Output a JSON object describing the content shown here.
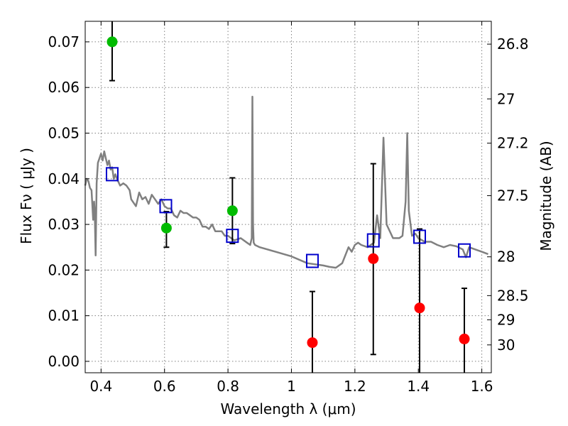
{
  "chart_data": {
    "type": "scatter",
    "xlabel": "Wavelength  λ (μm)",
    "ylabel": "Flux  Fν  ( μJy )",
    "ylabel_right": "Magnitude (AB)",
    "xlim": [
      0.35,
      1.63
    ],
    "ylim": [
      -0.0025,
      0.0745
    ],
    "grid": true,
    "x_ticks": [
      0.4,
      0.6,
      0.8,
      1.0,
      1.2,
      1.4,
      1.6
    ],
    "x_tick_labels": [
      "0.4",
      "0.6",
      "0.8",
      "1",
      "1.2",
      "1.4",
      "1.6"
    ],
    "y_ticks": [
      0.0,
      0.01,
      0.02,
      0.03,
      0.04,
      0.05,
      0.06,
      0.07
    ],
    "y_tick_labels": [
      "0.00",
      "0.01",
      "0.02",
      "0.03",
      "0.04",
      "0.05",
      "0.06",
      "0.07"
    ],
    "right_ticks": [
      {
        "flux": 0.0695,
        "label": "26.8"
      },
      {
        "flux": 0.0575,
        "label": "27"
      },
      {
        "flux": 0.0478,
        "label": "27.2"
      },
      {
        "flux": 0.0363,
        "label": "27.5"
      },
      {
        "flux": 0.0229,
        "label": "28"
      },
      {
        "flux": 0.0144,
        "label": "28.5"
      },
      {
        "flux": 0.0091,
        "label": "29"
      },
      {
        "flux": 0.0036,
        "label": "30"
      }
    ],
    "model_spectrum": {
      "color": "#808080",
      "x": [
        0.35,
        0.355,
        0.36,
        0.365,
        0.37,
        0.372,
        0.375,
        0.378,
        0.38,
        0.383,
        0.386,
        0.39,
        0.395,
        0.4,
        0.405,
        0.41,
        0.415,
        0.42,
        0.425,
        0.43,
        0.435,
        0.44,
        0.445,
        0.45,
        0.46,
        0.47,
        0.48,
        0.485,
        0.49,
        0.495,
        0.5,
        0.51,
        0.52,
        0.53,
        0.54,
        0.55,
        0.56,
        0.57,
        0.58,
        0.59,
        0.6,
        0.61,
        0.62,
        0.63,
        0.64,
        0.65,
        0.66,
        0.67,
        0.68,
        0.69,
        0.7,
        0.71,
        0.72,
        0.73,
        0.74,
        0.75,
        0.76,
        0.77,
        0.78,
        0.79,
        0.8,
        0.82,
        0.84,
        0.86,
        0.87,
        0.875,
        0.877,
        0.879,
        0.881,
        0.885,
        0.9,
        0.95,
        1.0,
        1.05,
        1.1,
        1.12,
        1.14,
        1.16,
        1.18,
        1.19,
        1.2,
        1.21,
        1.22,
        1.24,
        1.26,
        1.27,
        1.28,
        1.29,
        1.3,
        1.32,
        1.34,
        1.35,
        1.36,
        1.365,
        1.37,
        1.38,
        1.39,
        1.4,
        1.42,
        1.44,
        1.46,
        1.48,
        1.5,
        1.52,
        1.54,
        1.55,
        1.56,
        1.58,
        1.6,
        1.62
      ],
      "y": [
        0.0385,
        0.04,
        0.0395,
        0.038,
        0.0375,
        0.035,
        0.031,
        0.035,
        0.033,
        0.0232,
        0.039,
        0.0435,
        0.0445,
        0.0455,
        0.044,
        0.046,
        0.0445,
        0.043,
        0.044,
        0.042,
        0.0425,
        0.04,
        0.041,
        0.04,
        0.0385,
        0.039,
        0.0385,
        0.038,
        0.0375,
        0.0355,
        0.035,
        0.034,
        0.037,
        0.0355,
        0.036,
        0.0345,
        0.0365,
        0.0355,
        0.0345,
        0.0355,
        0.034,
        0.0335,
        0.0335,
        0.032,
        0.0315,
        0.033,
        0.0325,
        0.0325,
        0.032,
        0.0315,
        0.0315,
        0.031,
        0.0295,
        0.0295,
        0.029,
        0.03,
        0.0285,
        0.0285,
        0.0285,
        0.0275,
        0.0275,
        0.0265,
        0.027,
        0.026,
        0.0255,
        0.027,
        0.058,
        0.03,
        0.026,
        0.0255,
        0.025,
        0.024,
        0.023,
        0.0215,
        0.021,
        0.0207,
        0.0205,
        0.0215,
        0.025,
        0.024,
        0.0255,
        0.026,
        0.0255,
        0.025,
        0.026,
        0.032,
        0.027,
        0.049,
        0.03,
        0.027,
        0.027,
        0.0275,
        0.035,
        0.05,
        0.033,
        0.0275,
        0.028,
        0.027,
        0.0262,
        0.0262,
        0.0255,
        0.025,
        0.0255,
        0.0252,
        0.0245,
        0.0228,
        0.025,
        0.0245,
        0.024,
        0.0235
      ]
    },
    "series": [
      {
        "marker": "circle",
        "color": "#00bb00",
        "points": [
          {
            "x": 0.435,
            "y": 0.07,
            "err_low": 0.0615,
            "err_high": 0.0745
          },
          {
            "x": 0.606,
            "y": 0.0292,
            "err_low": 0.025,
            "err_high": 0.0328
          },
          {
            "x": 0.814,
            "y": 0.033,
            "err_low": 0.0258,
            "err_high": 0.0402
          }
        ]
      },
      {
        "marker": "circle",
        "color": "#ff0000",
        "points": [
          {
            "x": 1.066,
            "y": 0.0041,
            "err_low": -0.0025,
            "err_high": 0.0153
          },
          {
            "x": 1.258,
            "y": 0.0225,
            "err_low": 0.0015,
            "err_high": 0.0433
          },
          {
            "x": 1.404,
            "y": 0.0117,
            "err_low": -0.0025,
            "err_high": 0.029
          },
          {
            "x": 1.545,
            "y": 0.0049,
            "err_low": -0.0025,
            "err_high": 0.016
          }
        ]
      },
      {
        "marker": "square",
        "color": "#0000cc",
        "points": [
          {
            "x": 0.435,
            "y": 0.041
          },
          {
            "x": 0.604,
            "y": 0.034
          },
          {
            "x": 0.814,
            "y": 0.0275
          },
          {
            "x": 1.066,
            "y": 0.022
          },
          {
            "x": 1.258,
            "y": 0.0265
          },
          {
            "x": 1.404,
            "y": 0.0273
          },
          {
            "x": 1.545,
            "y": 0.0243
          }
        ]
      }
    ]
  }
}
